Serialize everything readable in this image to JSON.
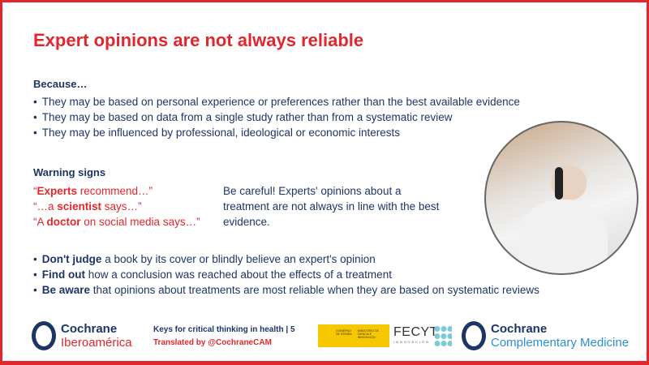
{
  "title": "Expert opinions are not always reliable",
  "because": {
    "heading": "Because…",
    "items": [
      "They may be based on personal experience or preferences rather than the best available evidence",
      "They may be based on data from a single study rather than from a systematic review",
      "They may be influenced by professional, ideological or economic interests"
    ]
  },
  "warning": {
    "heading": "Warning signs",
    "quotes": [
      {
        "pre": "“",
        "bold": "Experts",
        "post": " recommend…”"
      },
      {
        "pre": "“…a ",
        "bold": "scientist",
        "post": " says…”"
      },
      {
        "pre": "“A ",
        "bold": "doctor",
        "post": " on social media says…”"
      }
    ],
    "note": "Be careful! Experts' opinions about a treatment are not always in line with the best evidence."
  },
  "advice": [
    {
      "bold": "Don't judge",
      "rest": " a book by its cover or blindly believe an expert's opinion"
    },
    {
      "bold": "Find out",
      "rest": " how a conclusion was reached about the effects of a treatment"
    },
    {
      "bold": "Be aware",
      "rest": " that opinions about treatments are most reliable when they are based on systematic reviews"
    }
  ],
  "footer": {
    "logo1": [
      "Cochrane",
      "Iberoamérica"
    ],
    "series": "Keys for critical thinking in health | 5",
    "translated": "Translated by @CochraneCAM",
    "gov": "GOBIERNO DE ESPAÑA",
    "ministry": "MINISTERIO DE CIENCIA E INNOVACIÓN",
    "fecyt": "FECYT",
    "fecyt_sub": "INNOVACIÓN",
    "logo2": [
      "Cochrane",
      "Complementary Medicine"
    ]
  },
  "colors": {
    "red": "#e2262d",
    "navy": "#1d3565",
    "cam_blue": "#2a8fd0",
    "gov_yellow": "#f7c800"
  }
}
